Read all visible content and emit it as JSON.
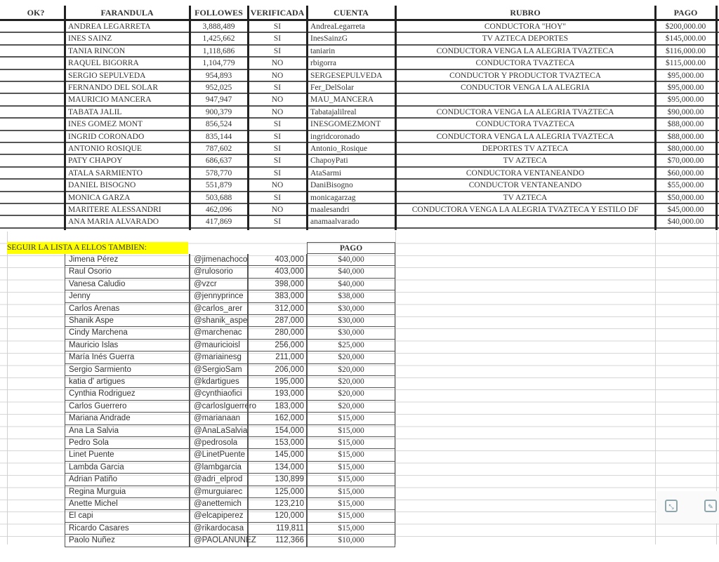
{
  "headers": {
    "ok": "OK?",
    "farandula": "FARANDULA",
    "followers": "FOLLOWES",
    "verificada": "VERIFICADA",
    "cuenta": "CUENTA",
    "rubro": "RUBRO",
    "pago": "PAGO"
  },
  "rows": [
    {
      "name": "ANDREA LEGARRETA",
      "followers": "3,888,489",
      "verified": "SI",
      "account": "AndreaLegarreta",
      "rubro": "CONDUCTORA \"HOY\"",
      "pago": "$200,000.00"
    },
    {
      "name": "INES SAINZ",
      "followers": "1,425,662",
      "verified": "SI",
      "account": "InesSainzG",
      "rubro": "TV AZTECA DEPORTES",
      "pago": "$145,000.00"
    },
    {
      "name": "TANIA RINCON",
      "followers": "1,118,686",
      "verified": "SI",
      "account": "taniarin",
      "rubro": "CONDUCTORA VENGA LA ALEGRIA TVAZTECA",
      "pago": "$116,000.00"
    },
    {
      "name": "RAQUEL BIGORRA",
      "followers": "1,104,779",
      "verified": "NO",
      "account": "rbigorra",
      "rubro": "CONDUCTORA TVAZTECA",
      "pago": "$115,000.00"
    },
    {
      "name": "SERGIO SEPULVEDA",
      "followers": "954,893",
      "verified": "NO",
      "account": "SERGESEPULVEDA",
      "rubro": "CONDUCTOR Y PRODUCTOR TVAZTECA",
      "pago": "$95,000.00"
    },
    {
      "name": "FERNANDO DEL SOLAR",
      "followers": "952,025",
      "verified": "SI",
      "account": "Fer_DelSolar",
      "rubro": "CONDUCTOR VENGA LA ALEGRIA",
      "pago": "$95,000.00"
    },
    {
      "name": "MAURICIO MANCERA",
      "followers": "947,947",
      "verified": "NO",
      "account": "MAU_MANCERA",
      "rubro": "",
      "pago": "$95,000.00"
    },
    {
      "name": "TABATA JALIL",
      "followers": "900,379",
      "verified": "NO",
      "account": "Tabatajalilreal",
      "rubro": "CONDUCTORA VENGA LA ALEGRIA TVAZTECA",
      "pago": "$90,000.00"
    },
    {
      "name": "INES GOMEZ MONT",
      "followers": "856,524",
      "verified": "SI",
      "account": "INESGOMEZMONT",
      "rubro": "CONDUCTORA TVAZTECA",
      "pago": "$88,000.00"
    },
    {
      "name": "INGRID CORONADO",
      "followers": "835,144",
      "verified": "SI",
      "account": "ingridcoronado",
      "rubro": "CONDUCTORA VENGA LA ALEGRIA TVAZTECA",
      "pago": "$88,000.00"
    },
    {
      "name": "ANTONIO ROSIQUE",
      "followers": "787,602",
      "verified": "SI",
      "account": "Antonio_Rosique",
      "rubro": "DEPORTES TV AZTECA",
      "pago": "$80,000.00"
    },
    {
      "name": "PATY CHAPOY",
      "followers": "686,637",
      "verified": "SI",
      "account": "ChapoyPati",
      "rubro": "TV AZTECA",
      "pago": "$70,000.00"
    },
    {
      "name": "ATALA SARMIENTO",
      "followers": "578,770",
      "verified": "SI",
      "account": "AtaSarmi",
      "rubro": "CONDUCTORA VENTANEANDO",
      "pago": "$60,000.00"
    },
    {
      "name": "DANIEL BISOGNO",
      "followers": "551,879",
      "verified": "NO",
      "account": "DaniBisogno",
      "rubro": "CONDUCTOR VENTANEANDO",
      "pago": "$55,000.00"
    },
    {
      "name": "MONICA GARZA",
      "followers": "503,688",
      "verified": "SI",
      "account": "monicagarzag",
      "rubro": "TV AZTECA",
      "pago": "$50,000.00"
    },
    {
      "name": "MARITERE ALESSANDRI",
      "followers": "462,096",
      "verified": "NO",
      "account": "maalesandri",
      "rubro": "CONDUCTORA VENGA LA ALEGRIA TVAZTECA Y ESTILO DF",
      "pago": "$45,000.00"
    },
    {
      "name": "ANA MARIA ALVARADO",
      "followers": "417,869",
      "verified": "SI",
      "account": "anamaalvarado",
      "rubro": "",
      "pago": "$40,000.00"
    }
  ],
  "section2": {
    "label": "SEGUIR LA LISTA A ELLOS TAMBIEN:",
    "pago_header": "PAGO",
    "rows": [
      {
        "name": "Jimena Pérez",
        "handle": "@jimenachoco",
        "followers": "403,000",
        "pago": "$40,000"
      },
      {
        "name": "Raul Osorio",
        "handle": "@rulosorio",
        "followers": "403,000",
        "pago": "$40,000"
      },
      {
        "name": "Vanesa Caludio",
        "handle": "@vzcr",
        "followers": "398,000",
        "pago": "$40,000"
      },
      {
        "name": "Jenny",
        "handle": "@jennyprince",
        "followers": "383,000",
        "pago": "$38,000"
      },
      {
        "name": "Carlos Arenas",
        "handle": "@carlos_arer",
        "followers": "312,000",
        "pago": "$30,000"
      },
      {
        "name": "Shanik Aspe",
        "handle": "@shanik_aspe",
        "followers": "287,000",
        "pago": "$30,000"
      },
      {
        "name": "Cindy Marchena",
        "handle": "@marchenac",
        "followers": "280,000",
        "pago": "$30,000"
      },
      {
        "name": "Mauricio Islas",
        "handle": "@mauricioisl",
        "followers": "256,000",
        "pago": "$25,000"
      },
      {
        "name": "María Inés Guerra",
        "handle": "@mariainesg",
        "followers": "211,000",
        "pago": "$20,000"
      },
      {
        "name": "Sergio Sarmiento",
        "handle": "@SergioSam",
        "followers": "206,000",
        "pago": "$20,000"
      },
      {
        "name": "katia d' artigues",
        "handle": "@kdartigues",
        "followers": "195,000",
        "pago": "$20,000"
      },
      {
        "name": "Cynthia Rodriguez",
        "handle": "@cynthiaofici",
        "followers": "193,000",
        "pago": "$20,000"
      },
      {
        "name": "Carlos Guerrero",
        "handle": "@carlosIguerrero",
        "followers": "183,000",
        "pago": "$20,000"
      },
      {
        "name": "Mariana Andrade",
        "handle": "@marianaan",
        "followers": "162,000",
        "pago": "$15,000"
      },
      {
        "name": "Ana La Salvia",
        "handle": "@AnaLaSalvia",
        "followers": "154,000",
        "pago": "$15,000"
      },
      {
        "name": "Pedro Sola",
        "handle": "@pedrosola",
        "followers": "153,000",
        "pago": "$15,000"
      },
      {
        "name": "Linet Puente",
        "handle": "@LinetPuente",
        "followers": "145,000",
        "pago": "$15,000"
      },
      {
        "name": "Lambda Garcia",
        "handle": "@lambgarcia",
        "followers": "134,000",
        "pago": "$15,000"
      },
      {
        "name": "Adrian Patiño",
        "handle": "@adri_elprod",
        "followers": "130,899",
        "pago": "$15,000"
      },
      {
        "name": "Regina Murguia",
        "handle": "@murguiarec",
        "followers": "125,000",
        "pago": "$15,000"
      },
      {
        "name": "Anette Michel",
        "handle": "@anettemich",
        "followers": "123,210",
        "pago": "$15,000"
      },
      {
        "name": "El capi",
        "handle": "@elcapiperez",
        "followers": "120,000",
        "pago": "$15,000"
      },
      {
        "name": "Ricardo Casares",
        "handle": "@rikardocasa",
        "followers": "119,811",
        "pago": "$15,000"
      },
      {
        "name": "Paolo Nuñez",
        "handle": "@PAOLANUNEZ",
        "followers": "112,366",
        "pago": "$10,000"
      }
    ]
  },
  "tools": {
    "expand_icon": "expand-icon",
    "edit_icon": "pencil-icon"
  },
  "colors": {
    "highlight": "#ffff00",
    "grid": "#d6d6d6"
  }
}
